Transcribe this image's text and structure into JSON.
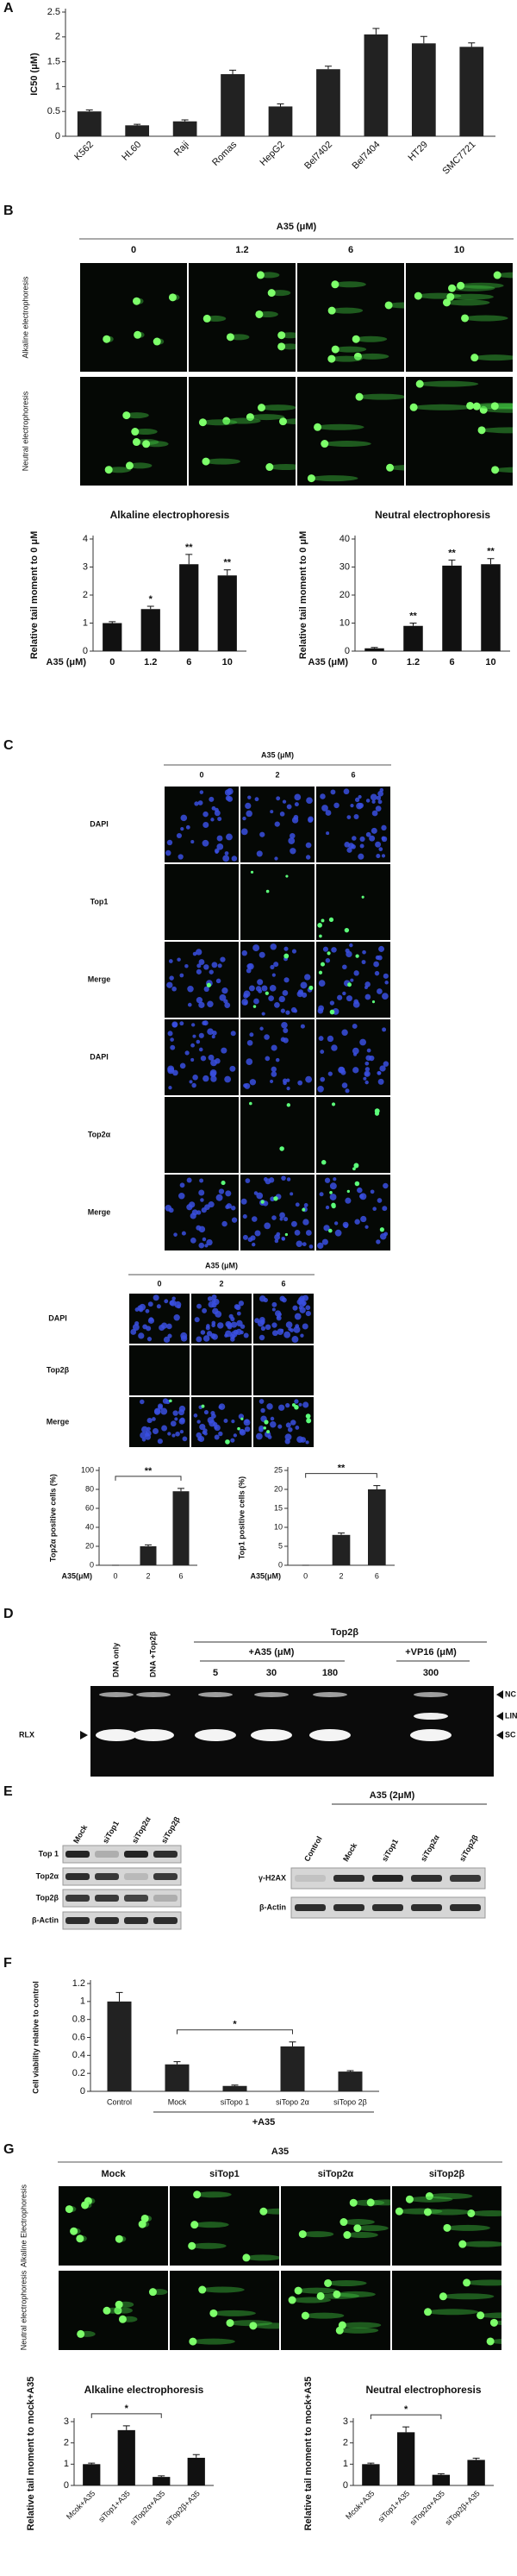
{
  "panel_labels": [
    "A",
    "B",
    "C",
    "D",
    "E",
    "F",
    "G"
  ],
  "chart_data": [
    {
      "type": "bar",
      "ylabel": "IC50 (μM)",
      "categories": [
        "K562",
        "HL60",
        "Raji",
        "Romas",
        "HepG2",
        "Bel7402",
        "Bel7404",
        "HT29",
        "SMC7721"
      ],
      "values": [
        0.5,
        0.22,
        0.3,
        1.25,
        0.6,
        1.35,
        2.05,
        1.87,
        1.8
      ],
      "errors": [
        0.03,
        0.02,
        0.03,
        0.08,
        0.05,
        0.06,
        0.12,
        0.14,
        0.08
      ],
      "color": "#222222",
      "ylim": [
        0,
        2.5
      ],
      "yticks": [
        0,
        0.5,
        1,
        1.5,
        2,
        2.5
      ]
    },
    {
      "type": "bar",
      "title": "Alkaline electrophoresis",
      "ylabel": "Relative tail moment to 0 μM",
      "xlabel": "A35 (μM)",
      "categories": [
        "0",
        "1.2",
        "6",
        "10"
      ],
      "values": [
        1,
        1.5,
        3.1,
        2.7
      ],
      "errors": [
        0.05,
        0.1,
        0.35,
        0.2
      ],
      "significance": [
        null,
        "*",
        "**",
        "**"
      ],
      "color": "#111111",
      "ylim": [
        0,
        4
      ],
      "yticks": [
        0,
        1,
        2,
        3,
        4
      ]
    },
    {
      "type": "bar",
      "title": "Neutral electrophoresis",
      "ylabel": "Relative tail moment to 0 μM",
      "xlabel": "A35 (μM)",
      "categories": [
        "0",
        "1.2",
        "6",
        "10"
      ],
      "values": [
        1,
        9,
        30.5,
        31
      ],
      "errors": [
        0.3,
        1,
        2,
        2
      ],
      "significance": [
        null,
        "**",
        "**",
        "**"
      ],
      "color": "#111111",
      "ylim": [
        0,
        40
      ],
      "yticks": [
        0,
        10,
        20,
        30,
        40
      ]
    },
    {
      "type": "bar",
      "ylabel": "Top2α positive cells (%)",
      "xlabel": "A35(μM)",
      "categories": [
        "0",
        "2",
        "6"
      ],
      "values": [
        0,
        20,
        78
      ],
      "errors": [
        0,
        1.5,
        3
      ],
      "bracket": "**",
      "color": "#222222",
      "ylim": [
        0,
        100
      ],
      "yticks": [
        0,
        20,
        40,
        60,
        80,
        100
      ]
    },
    {
      "type": "bar",
      "ylabel": "Top1 positive cells (%)",
      "xlabel": "A35(μM)",
      "categories": [
        "0",
        "2",
        "6"
      ],
      "values": [
        0,
        8,
        20
      ],
      "errors": [
        0,
        0.5,
        1
      ],
      "bracket": "**",
      "color": "#222222",
      "ylim": [
        0,
        25
      ],
      "yticks": [
        0,
        5,
        10,
        15,
        20,
        25
      ]
    },
    {
      "type": "bar",
      "ylabel": "Cell viability relative to control",
      "categories": [
        "Control",
        "Mock",
        "siTopo 1",
        "siTopo 2α",
        "siTopo 2β"
      ],
      "values": [
        1,
        0.3,
        0.06,
        0.5,
        0.22
      ],
      "errors": [
        0.1,
        0.03,
        0.01,
        0.05,
        0.01
      ],
      "bracket": "*",
      "group_label": "+A35",
      "color": "#222222",
      "ylim": [
        0,
        1.2
      ],
      "yticks": [
        0,
        0.2,
        0.4,
        0.6,
        0.8,
        1,
        1.2
      ]
    },
    {
      "type": "bar",
      "title": "Alkaline electrophoresis",
      "ylabel": "Relative tail moment to mock+A35",
      "categories": [
        "Mcok+A35",
        "siTop1+A35",
        "siTop2α+A35",
        "siTop2β+A35"
      ],
      "values": [
        1,
        2.6,
        0.4,
        1.3
      ],
      "errors": [
        0.05,
        0.2,
        0.05,
        0.15
      ],
      "bracket": "*",
      "color": "#111111",
      "ylim": [
        0,
        3
      ],
      "yticks": [
        0,
        1,
        2,
        3
      ]
    },
    {
      "type": "bar",
      "title": "Neutral electrophoresis",
      "ylabel": "Relative tail moment to mock+A35",
      "categories": [
        "Mcok+A35",
        "siTop1+A35",
        "siTop2α+A35",
        "siTop2β+A35"
      ],
      "values": [
        1,
        2.5,
        0.5,
        1.2
      ],
      "errors": [
        0.05,
        0.25,
        0.05,
        0.08
      ],
      "bracket": "*",
      "color": "#111111",
      "ylim": [
        0,
        3
      ],
      "yticks": [
        0,
        1,
        2,
        3
      ]
    }
  ],
  "micrographs": {
    "B": {
      "header": "A35 (μM)",
      "columns": [
        "0",
        "1.2",
        "6",
        "10"
      ],
      "rows": [
        "Alkaline electrophoresis",
        "Neutral electrophoresis"
      ]
    },
    "C1": {
      "header": "A35 (μM)",
      "columns": [
        "0",
        "2",
        "6"
      ],
      "rows": [
        "DAPI",
        "Top1",
        "Merge",
        "DAPI",
        "Top2α",
        "Merge"
      ]
    },
    "C2": {
      "header": "A35 (μM)",
      "columns": [
        "0",
        "2",
        "6"
      ],
      "rows": [
        "DAPI",
        "Top2β",
        "Merge"
      ]
    },
    "G": {
      "header": "A35",
      "columns": [
        "Mock",
        "siTop1",
        "siTop2α",
        "siTop2β"
      ],
      "rows": [
        "Alkaline Electrophoresis",
        "Neutral electrophoresis"
      ]
    }
  },
  "gel": {
    "lanes_top": [
      "DNA only",
      "DNA +Top2β"
    ],
    "group": "Top2β",
    "a35": "+A35 (μM)",
    "a35_doses": [
      "5",
      "30",
      "180"
    ],
    "vp16": "+VP16 (μM)",
    "vp16_doses": [
      "300"
    ],
    "bands_right": [
      "NC",
      "LIN",
      "SC"
    ],
    "band_left": "RLX"
  },
  "blots": {
    "left": {
      "lanes": [
        "Mock",
        "siTop1",
        "siTop2α",
        "siTop2β"
      ],
      "rows": [
        "Top 1",
        "Top2α",
        "Top2β",
        "β-Actin"
      ]
    },
    "right": {
      "header": "A35 (2μM)",
      "lanes": [
        "Control",
        "Mock",
        "siTop1",
        "siTop2α",
        "siTop2β"
      ],
      "rows": [
        "γ-H2AX",
        "β-Actin"
      ]
    }
  }
}
